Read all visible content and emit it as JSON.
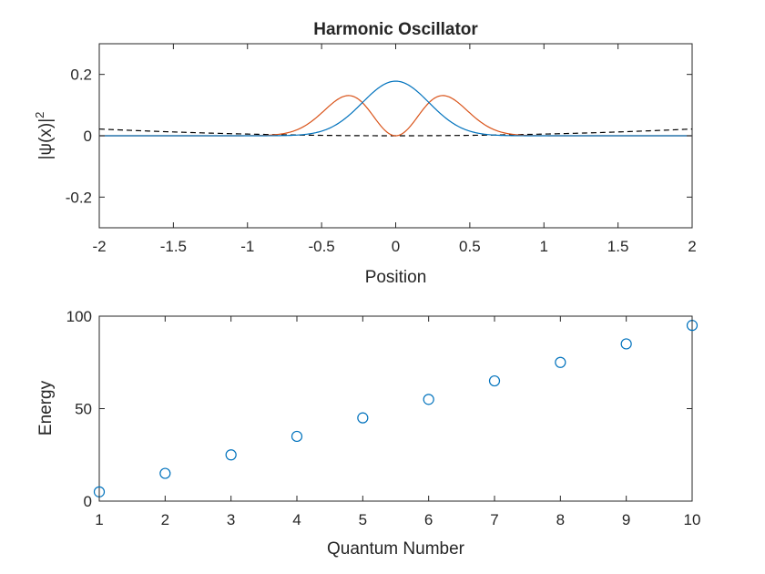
{
  "chart_data": [
    {
      "type": "line",
      "title": "Harmonic Oscillator",
      "xlabel": "Position",
      "ylabel": "|ψ(x)|",
      "ylabel_superscript": "2",
      "xlim": [
        -2,
        2
      ],
      "ylim": [
        -0.3,
        0.3
      ],
      "xticks": [
        "-2",
        "-1.5",
        "-1",
        "-0.5",
        "0",
        "0.5",
        "1",
        "1.5",
        "2"
      ],
      "yticks": [
        "-0.2",
        "0",
        "0.2"
      ],
      "xtick_values": [
        -2,
        -1.5,
        -1,
        -0.5,
        0,
        0.5,
        1,
        1.5,
        2
      ],
      "ytick_values": [
        -0.2,
        0,
        0.2
      ],
      "grid": false,
      "series": [
        {
          "kind": "ground state |ψ₀(x)|²",
          "color": "#0072BD",
          "style": "solid",
          "peak": 0.178,
          "width": 0.318
        },
        {
          "kind": "first excited state |ψ₁(x)|²",
          "color": "#D95319",
          "style": "solid",
          "peak_x": 0.318,
          "peak_y": 0.131
        },
        {
          "kind": "potential",
          "color": "#000000",
          "style": "dashed",
          "x": [
            -2,
            0,
            2
          ],
          "y": [
            0.022,
            0,
            0.022
          ]
        }
      ]
    },
    {
      "type": "scatter",
      "title": "",
      "xlabel": "Quantum Number",
      "ylabel": "Energy",
      "xlim": [
        1,
        10
      ],
      "ylim": [
        0,
        100
      ],
      "xticks": [
        "1",
        "2",
        "3",
        "4",
        "5",
        "6",
        "7",
        "8",
        "9",
        "10"
      ],
      "yticks": [
        "0",
        "50",
        "100"
      ],
      "xtick_values": [
        1,
        2,
        3,
        4,
        5,
        6,
        7,
        8,
        9,
        10
      ],
      "ytick_values": [
        0,
        50,
        100
      ],
      "grid": false,
      "marker": "circle",
      "color": "#0072BD",
      "x": [
        1,
        2,
        3,
        4,
        5,
        6,
        7,
        8,
        9,
        10
      ],
      "y": [
        5,
        15,
        25,
        35,
        45,
        55,
        65,
        75,
        85,
        95
      ]
    }
  ]
}
